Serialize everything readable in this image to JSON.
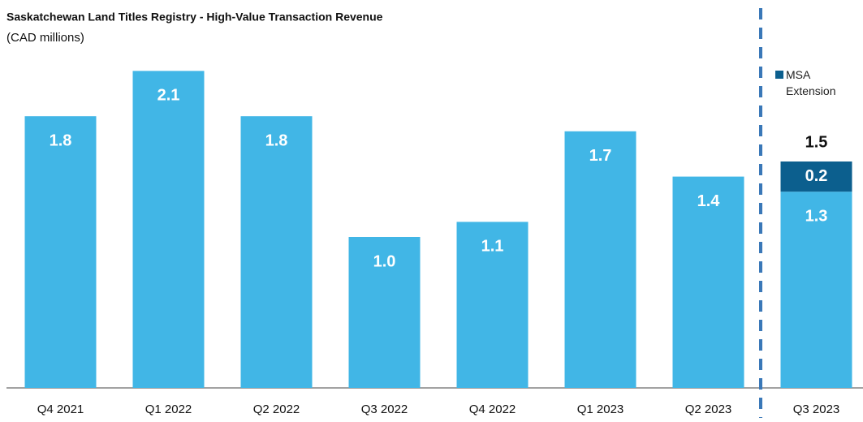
{
  "chart_data": {
    "type": "stacked_bar",
    "title": "Saskatchewan Land Titles Registry - High-Value Transaction Revenue",
    "subtitle": "(CAD millions)",
    "categories": [
      "Q4 2021",
      "Q1 2022",
      "Q2 2022",
      "Q3 2022",
      "Q4 2022",
      "Q1 2023",
      "Q2 2023",
      "Q3 2023"
    ],
    "series": [
      {
        "color": "#41b6e6",
        "values": [
          1.8,
          2.1,
          1.8,
          1.0,
          1.1,
          1.7,
          1.4,
          1.3
        ],
        "value_labels": [
          "1.8",
          "2.1",
          "1.8",
          "1.0",
          "1.1",
          "1.7",
          "1.4",
          "1.3"
        ]
      },
      {
        "name": "MSA Extension",
        "color": "#0c5f8e",
        "values": [
          null,
          null,
          null,
          null,
          null,
          null,
          null,
          0.2
        ],
        "value_labels": [
          null,
          null,
          null,
          null,
          null,
          null,
          null,
          "0.2"
        ]
      }
    ],
    "total_label": "1.5",
    "ylim": [
      0,
      2.5
    ]
  }
}
